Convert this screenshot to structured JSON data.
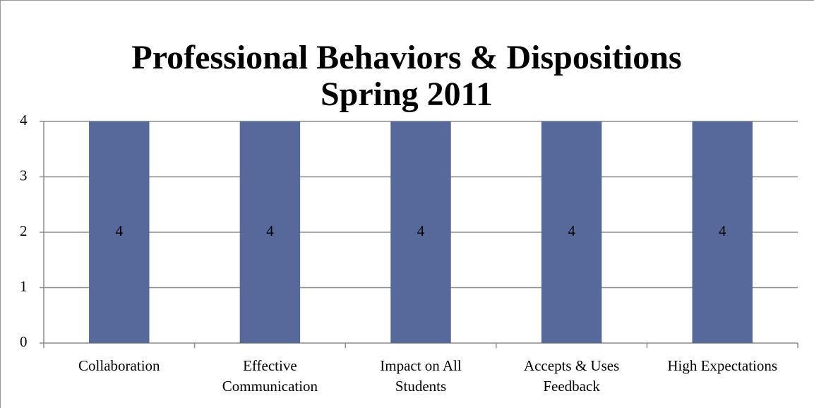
{
  "chart_data": {
    "type": "bar",
    "title": "Professional Behaviors & Dispositions",
    "subtitle": "Spring 2011",
    "categories": [
      "Collaboration",
      "Effective Communication",
      "Impact on All Students",
      "Accepts & Uses Feedback",
      "High Expectations"
    ],
    "values": [
      4,
      4,
      4,
      4,
      4
    ],
    "color": "#56699a",
    "ylim": [
      0,
      4
    ],
    "yticks": [
      0,
      1,
      2,
      3,
      4
    ],
    "grid": true,
    "data_labels": true
  }
}
